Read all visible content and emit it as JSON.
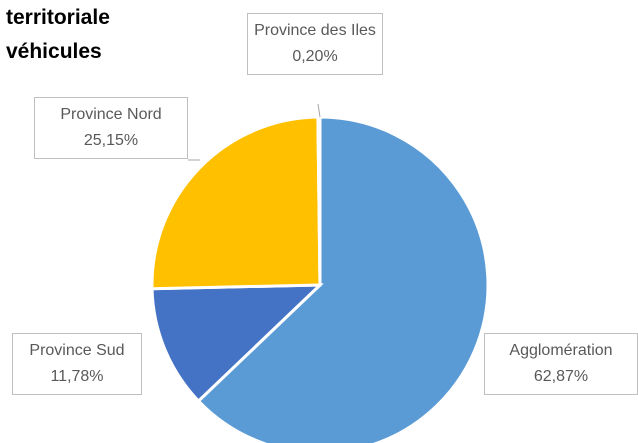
{
  "chart_data": {
    "type": "pie",
    "title_lines": [
      "territoriale",
      "véhicules"
    ],
    "categories": [
      "Agglomération",
      "Province Sud",
      "Province Nord",
      "Province des Iles"
    ],
    "values": [
      62.87,
      11.78,
      25.15,
      0.2
    ],
    "value_labels": [
      "62,87%",
      "11,78%",
      "25,15%",
      "0,20%"
    ],
    "colors": [
      "#5b9bd5",
      "#4472c4",
      "#ffc000",
      "#a5a5a5"
    ]
  }
}
